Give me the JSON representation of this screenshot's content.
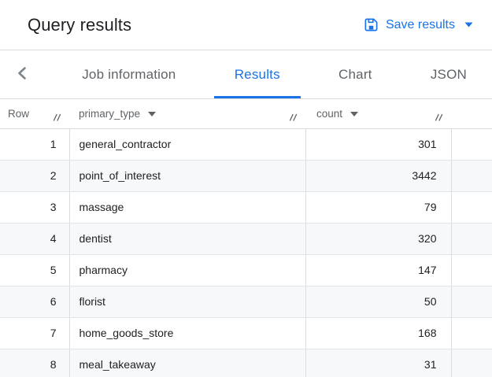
{
  "header": {
    "title": "Query results",
    "save_button_label": "Save results"
  },
  "tabs": {
    "items": [
      {
        "label": "Job information",
        "active": false
      },
      {
        "label": "Results",
        "active": true
      },
      {
        "label": "Chart",
        "active": false
      },
      {
        "label": "JSON",
        "active": false
      }
    ]
  },
  "table": {
    "columns": [
      {
        "label": "Row",
        "sortable": false
      },
      {
        "label": "primary_type",
        "sortable": true
      },
      {
        "label": "count",
        "sortable": true
      }
    ],
    "rows": [
      {
        "row": 1,
        "primary_type": "general_contractor",
        "count": 301
      },
      {
        "row": 2,
        "primary_type": "point_of_interest",
        "count": 3442
      },
      {
        "row": 3,
        "primary_type": "massage",
        "count": 79
      },
      {
        "row": 4,
        "primary_type": "dentist",
        "count": 320
      },
      {
        "row": 5,
        "primary_type": "pharmacy",
        "count": 147
      },
      {
        "row": 6,
        "primary_type": "florist",
        "count": 50
      },
      {
        "row": 7,
        "primary_type": "home_goods_store",
        "count": 168
      },
      {
        "row": 8,
        "primary_type": "meal_takeaway",
        "count": 31
      }
    ]
  },
  "icons": {
    "save": "save-icon",
    "save_dropdown": "caret-down-icon",
    "back": "chevron-left-icon",
    "column_sort": "caret-down-icon",
    "column_resize": "column-resize-handle-icon"
  },
  "colors": {
    "accent": "#1a73e8",
    "title_text": "#202124",
    "secondary_text": "#5f6368",
    "stripe": "#f7f8f9",
    "border": "#dadce0"
  }
}
